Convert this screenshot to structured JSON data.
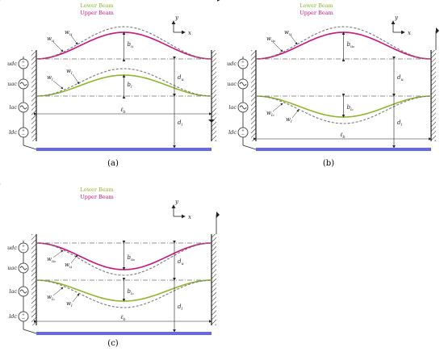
{
  "legend": {
    "lower": "Lower Beam",
    "upper": "Upper Beam"
  },
  "colors": {
    "upper": "#d0127a",
    "lower": "#8fb52a",
    "dashed": "#777777",
    "electrode": "#6666ee",
    "line": "#222222"
  },
  "sources": [
    {
      "label": "udc",
      "type": "dc"
    },
    {
      "label": "uac",
      "type": "ac"
    },
    {
      "label": "lac",
      "type": "ac"
    },
    {
      "label": "ldc",
      "type": "dc"
    }
  ],
  "axes": {
    "x": "x",
    "y": "y"
  },
  "panels": [
    {
      "caption": "(a)",
      "upper_direction": "up",
      "lower_direction": "up",
      "upper_labels": {
        "w0": "w",
        "w0_sub": "u",
        "w": "w",
        "w_sub": "u",
        "b": "b",
        "b_sub": "u"
      },
      "lower_labels": {
        "w0": "w",
        "w0_sub": "l",
        "w": "w",
        "w_sub": "l",
        "b": "b",
        "b_sub": "l"
      },
      "d_u": "d",
      "d_u_sub": "u",
      "d_l": "d",
      "d_l_sub": "l",
      "length": "ℓ",
      "length_sub": "b",
      "ground": "bottom"
    },
    {
      "caption": "(b)",
      "upper_direction": "up",
      "lower_direction": "down",
      "upper_labels": {
        "w0": "w",
        "w0_sub": "u₀",
        "w": "w",
        "w_sub": "u",
        "b": "b",
        "b_sub": "u₀"
      },
      "lower_labels": {
        "w0": "w",
        "w0_sub": "l₀",
        "w": "w",
        "w_sub": "l",
        "b": "b",
        "b_sub": "l₀"
      },
      "d_u": "d",
      "d_u_sub": "u",
      "d_l": "d",
      "d_l_sub": "l",
      "length": "ℓ",
      "length_sub": "b",
      "ground": "top"
    },
    {
      "caption": "(c)",
      "upper_direction": "down",
      "lower_direction": "down",
      "upper_labels": {
        "w0": "w",
        "w0_sub": "u₀",
        "w": "w",
        "w_sub": "u",
        "b": "b",
        "b_sub": "u₀"
      },
      "lower_labels": {
        "w0": "w",
        "w0_sub": "l₀",
        "w": "w",
        "w_sub": "l",
        "b": "b",
        "b_sub": "l₀"
      },
      "d_u": "d",
      "d_u_sub": "u",
      "d_l": "d",
      "d_l_sub": "l",
      "length": "ℓ",
      "length_sub": "b",
      "ground": "top"
    }
  ]
}
